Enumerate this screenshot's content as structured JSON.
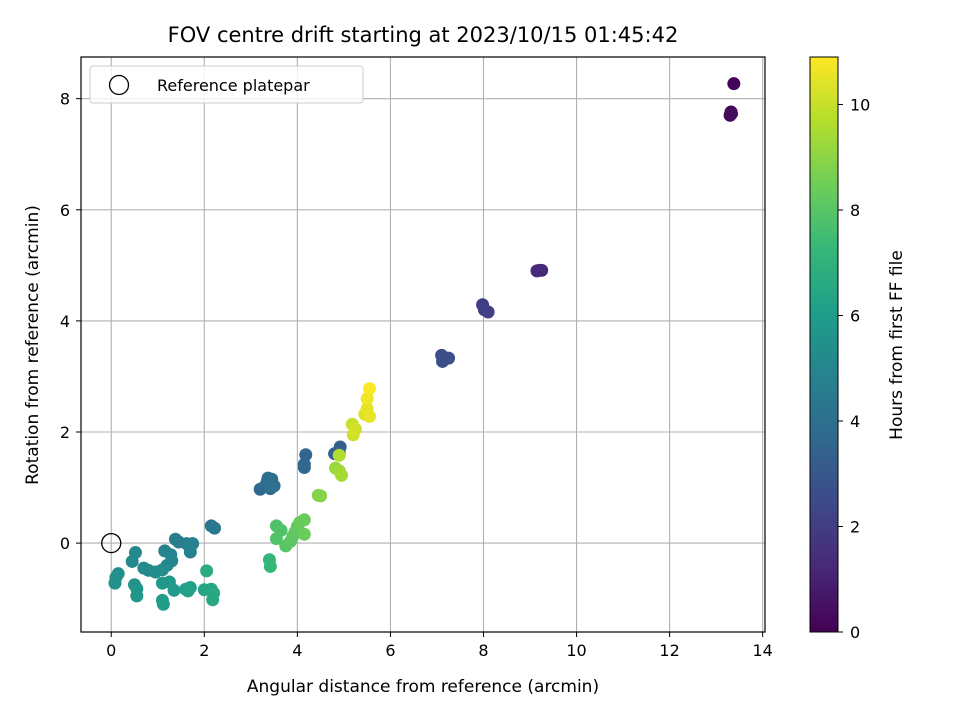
{
  "chart_data": {
    "type": "scatter",
    "title": "FOV centre drift starting at 2023/10/15 01:45:42",
    "xlabel": "Angular distance from reference (arcmin)",
    "ylabel": "Rotation from reference (arcmin)",
    "xlim": [
      -0.65,
      14.05
    ],
    "ylim": [
      -1.6,
      8.75
    ],
    "xticks": [
      0,
      2,
      4,
      6,
      8,
      10,
      12,
      14
    ],
    "yticks": [
      0,
      2,
      4,
      6,
      8
    ],
    "grid": true,
    "legend": {
      "placement": "upper-left",
      "entries": [
        "Reference platepar"
      ]
    },
    "reference_point": {
      "x": 0,
      "y": 0
    },
    "colorbar": {
      "label": "Hours from first FF file",
      "range": [
        0,
        10.9
      ],
      "ticks": [
        0,
        2,
        4,
        6,
        8,
        10
      ],
      "colormap": [
        "#440154",
        "#482878",
        "#3e4989",
        "#31688e",
        "#26828e",
        "#1f9e89",
        "#35b779",
        "#6ece58",
        "#b5de2b",
        "#fde725"
      ]
    },
    "points": [
      {
        "x": 13.38,
        "y": 8.27,
        "t": 0.1
      },
      {
        "x": 13.32,
        "y": 7.76,
        "t": 0.2
      },
      {
        "x": 13.3,
        "y": 7.7,
        "t": 0.25
      },
      {
        "x": 13.33,
        "y": 7.73,
        "t": 0.3
      },
      {
        "x": 9.25,
        "y": 4.91,
        "t": 1.2
      },
      {
        "x": 9.15,
        "y": 4.9,
        "t": 1.25
      },
      {
        "x": 9.2,
        "y": 4.91,
        "t": 1.3
      },
      {
        "x": 7.98,
        "y": 4.29,
        "t": 2.0
      },
      {
        "x": 8.02,
        "y": 4.2,
        "t": 2.05
      },
      {
        "x": 8.1,
        "y": 4.16,
        "t": 2.1
      },
      {
        "x": 7.1,
        "y": 3.38,
        "t": 2.6
      },
      {
        "x": 7.25,
        "y": 3.33,
        "t": 2.65
      },
      {
        "x": 7.12,
        "y": 3.27,
        "t": 2.7
      },
      {
        "x": 4.92,
        "y": 1.73,
        "t": 3.3
      },
      {
        "x": 4.8,
        "y": 1.61,
        "t": 3.35
      },
      {
        "x": 4.9,
        "y": 1.62,
        "t": 3.4
      },
      {
        "x": 4.18,
        "y": 1.59,
        "t": 3.5
      },
      {
        "x": 4.15,
        "y": 1.42,
        "t": 3.55
      },
      {
        "x": 4.15,
        "y": 1.36,
        "t": 3.6
      },
      {
        "x": 3.2,
        "y": 0.97,
        "t": 3.7
      },
      {
        "x": 3.3,
        "y": 1.02,
        "t": 3.75
      },
      {
        "x": 3.35,
        "y": 1.1,
        "t": 3.8
      },
      {
        "x": 3.37,
        "y": 1.17,
        "t": 3.85
      },
      {
        "x": 3.45,
        "y": 1.15,
        "t": 3.9
      },
      {
        "x": 3.5,
        "y": 1.03,
        "t": 3.95
      },
      {
        "x": 3.42,
        "y": 0.98,
        "t": 4.0
      },
      {
        "x": 2.15,
        "y": 0.31,
        "t": 4.3
      },
      {
        "x": 2.22,
        "y": 0.27,
        "t": 4.4
      },
      {
        "x": 1.38,
        "y": 0.07,
        "t": 4.6
      },
      {
        "x": 1.45,
        "y": 0.02,
        "t": 4.65
      },
      {
        "x": 1.62,
        "y": -0.01,
        "t": 4.7
      },
      {
        "x": 1.75,
        "y": -0.01,
        "t": 4.75
      },
      {
        "x": 1.7,
        "y": -0.16,
        "t": 4.8
      },
      {
        "x": 1.15,
        "y": -0.14,
        "t": 4.9
      },
      {
        "x": 1.28,
        "y": -0.21,
        "t": 4.95
      },
      {
        "x": 1.3,
        "y": -0.32,
        "t": 5.0
      },
      {
        "x": 1.2,
        "y": -0.4,
        "t": 5.05
      },
      {
        "x": 0.52,
        "y": -0.17,
        "t": 5.1
      },
      {
        "x": 0.45,
        "y": -0.33,
        "t": 5.15
      },
      {
        "x": 0.7,
        "y": -0.45,
        "t": 5.2
      },
      {
        "x": 0.8,
        "y": -0.49,
        "t": 5.25
      },
      {
        "x": 0.95,
        "y": -0.52,
        "t": 5.3
      },
      {
        "x": 1.1,
        "y": -0.48,
        "t": 5.35
      },
      {
        "x": 0.15,
        "y": -0.55,
        "t": 5.4
      },
      {
        "x": 0.1,
        "y": -0.62,
        "t": 5.45
      },
      {
        "x": 0.08,
        "y": -0.72,
        "t": 5.5
      },
      {
        "x": 0.5,
        "y": -0.75,
        "t": 5.6
      },
      {
        "x": 0.55,
        "y": -0.82,
        "t": 5.65
      },
      {
        "x": 0.55,
        "y": -0.95,
        "t": 5.7
      },
      {
        "x": 1.1,
        "y": -0.72,
        "t": 5.8
      },
      {
        "x": 1.25,
        "y": -0.7,
        "t": 5.85
      },
      {
        "x": 1.35,
        "y": -0.85,
        "t": 5.9
      },
      {
        "x": 1.1,
        "y": -1.03,
        "t": 5.95
      },
      {
        "x": 1.12,
        "y": -1.1,
        "t": 6.0
      },
      {
        "x": 1.6,
        "y": -0.83,
        "t": 6.1
      },
      {
        "x": 1.7,
        "y": -0.8,
        "t": 6.15
      },
      {
        "x": 1.65,
        "y": -0.86,
        "t": 6.2
      },
      {
        "x": 2.0,
        "y": -0.84,
        "t": 6.4
      },
      {
        "x": 2.15,
        "y": -0.83,
        "t": 6.45
      },
      {
        "x": 2.2,
        "y": -0.9,
        "t": 6.5
      },
      {
        "x": 2.18,
        "y": -1.02,
        "t": 6.55
      },
      {
        "x": 2.05,
        "y": -0.5,
        "t": 6.8
      },
      {
        "x": 3.4,
        "y": -0.3,
        "t": 7.2
      },
      {
        "x": 3.42,
        "y": -0.42,
        "t": 7.25
      },
      {
        "x": 3.55,
        "y": 0.31,
        "t": 7.8
      },
      {
        "x": 3.65,
        "y": 0.23,
        "t": 7.85
      },
      {
        "x": 3.55,
        "y": 0.08,
        "t": 7.9
      },
      {
        "x": 3.75,
        "y": -0.05,
        "t": 8.0
      },
      {
        "x": 3.85,
        "y": 0.03,
        "t": 8.05
      },
      {
        "x": 3.9,
        "y": 0.12,
        "t": 8.1
      },
      {
        "x": 3.95,
        "y": 0.2,
        "t": 8.15
      },
      {
        "x": 4.0,
        "y": 0.3,
        "t": 8.2
      },
      {
        "x": 4.05,
        "y": 0.37,
        "t": 8.3
      },
      {
        "x": 4.15,
        "y": 0.42,
        "t": 8.35
      },
      {
        "x": 4.15,
        "y": 0.16,
        "t": 8.4
      },
      {
        "x": 4.45,
        "y": 0.86,
        "t": 8.8
      },
      {
        "x": 4.5,
        "y": 0.85,
        "t": 8.85
      },
      {
        "x": 4.82,
        "y": 1.35,
        "t": 9.2
      },
      {
        "x": 4.9,
        "y": 1.3,
        "t": 9.3
      },
      {
        "x": 4.95,
        "y": 1.22,
        "t": 9.4
      },
      {
        "x": 4.9,
        "y": 1.58,
        "t": 9.6
      },
      {
        "x": 5.18,
        "y": 2.14,
        "t": 10.0
      },
      {
        "x": 5.2,
        "y": 1.95,
        "t": 10.1
      },
      {
        "x": 5.25,
        "y": 2.05,
        "t": 10.2
      },
      {
        "x": 5.45,
        "y": 2.32,
        "t": 10.4
      },
      {
        "x": 5.5,
        "y": 2.42,
        "t": 10.5
      },
      {
        "x": 5.55,
        "y": 2.28,
        "t": 10.55
      },
      {
        "x": 5.5,
        "y": 2.6,
        "t": 10.7
      },
      {
        "x": 5.55,
        "y": 2.78,
        "t": 10.85
      }
    ]
  }
}
